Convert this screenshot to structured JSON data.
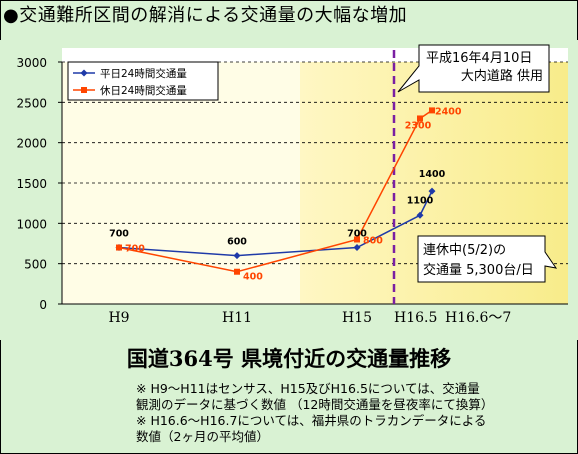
{
  "heading": "●交通難所区間の解消による交通量の大幅な増加",
  "chart_title": "国道364号 県境付近の交通量推移",
  "notes": [
    "※ H9〜H11はセンサス、H15及びH16.5については、交通量",
    "観測のデータに基づく数値 （12時間交通量を昼夜率にて換算）",
    "※ H16.6〜H16.7については、福井県のトラカンデータによる",
    "数値（2ヶ月の平均値）"
  ],
  "colors": {
    "weekday": "#1f3aa8",
    "holiday": "#ff4500",
    "event_line": "#7a1fa2",
    "plot_bg": "#fffde6",
    "highlight": "#fbf3a2"
  },
  "chart_data": {
    "type": "line",
    "x_labels": [
      "H9",
      "H11",
      "H15",
      "H16.5",
      "H16.6〜7"
    ],
    "ylim": [
      0,
      3000
    ],
    "yticks": [
      0,
      500,
      1000,
      1500,
      2000,
      2500,
      3000
    ],
    "grid": true,
    "legend_position": "top-left",
    "series": [
      {
        "name": "平日24時間交通量",
        "color": "#1f3aa8",
        "marker": "diamond",
        "points": [
          {
            "x": "H9",
            "y": 700
          },
          {
            "x": "H11",
            "y": 600
          },
          {
            "x": "H15",
            "y": 700
          },
          {
            "x": "H16.5",
            "y": 1100
          },
          {
            "x": "H16.6〜7",
            "y": 1400
          }
        ]
      },
      {
        "name": "休日24時間交通量",
        "color": "#ff4500",
        "marker": "square",
        "points": [
          {
            "x": "H9",
            "y": 700
          },
          {
            "x": "H11",
            "y": 400
          },
          {
            "x": "H15",
            "y": 800
          },
          {
            "x": "H16.5",
            "y": 2300
          },
          {
            "x": "H16.6〜7",
            "y": 2400
          }
        ]
      }
    ],
    "annotations": [
      {
        "text_lines": [
          "平成16年4月10日",
          "大内道路 供用"
        ]
      },
      {
        "text_lines": [
          "連休中(5/2)の",
          "交通量 5,300台/日"
        ]
      }
    ]
  }
}
